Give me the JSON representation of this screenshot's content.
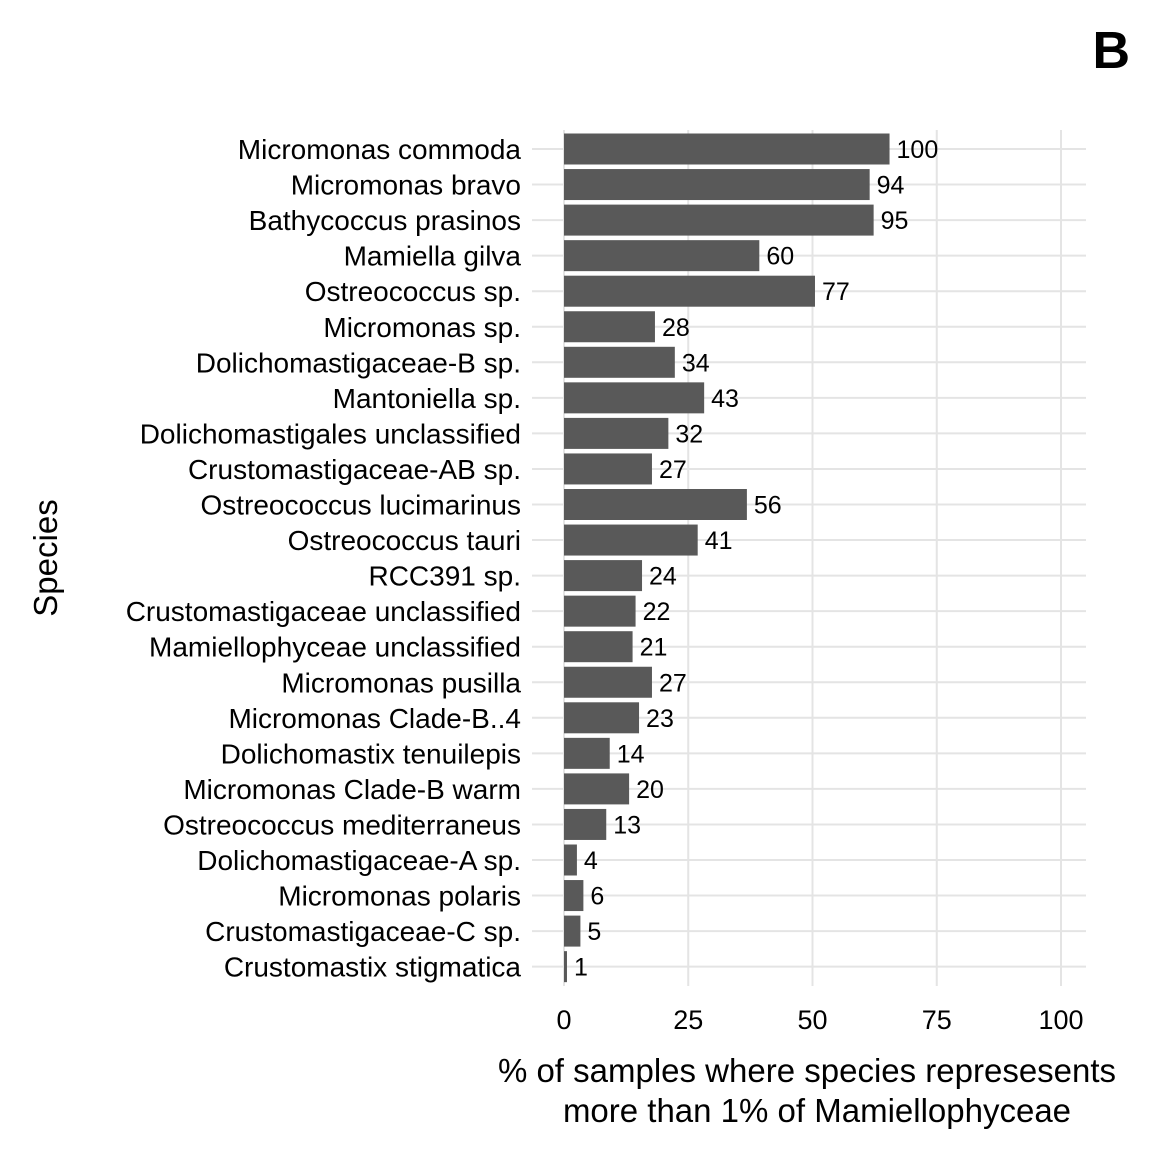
{
  "panel_tag": "B",
  "chart_data": {
    "type": "bar",
    "orientation": "horizontal",
    "title": "",
    "ylabel": "Species",
    "xlabel": [
      "% of samples where species represesents",
      "more than 1% of Mamiellophyceae"
    ],
    "xlim": [
      0,
      100
    ],
    "xticks": [
      0,
      25,
      50,
      75,
      100
    ],
    "grid": true,
    "bar_color": "#595959",
    "categories": [
      "Micromonas commoda",
      "Micromonas bravo",
      "Bathycoccus prasinos",
      "Mamiella gilva",
      "Ostreococcus sp.",
      "Micromonas sp.",
      "Dolichomastigaceae-B sp.",
      "Mantoniella sp.",
      "Dolichomastigales unclassified",
      "Crustomastigaceae-AB sp.",
      "Ostreococcus lucimarinus",
      "Ostreococcus tauri",
      "RCC391 sp.",
      "Crustomastigaceae unclassified",
      "Mamiellophyceae unclassified",
      "Micromonas pusilla",
      "Micromonas Clade-B..4",
      "Dolichomastix tenuilepis",
      "Micromonas Clade-B warm",
      "Ostreococcus mediterraneus",
      "Dolichomastigaceae-A sp.",
      "Micromonas polaris",
      "Crustomastigaceae-C sp.",
      "Crustomastix stigmatica"
    ],
    "values": [
      65.5,
      61.5,
      62.3,
      39.3,
      50.5,
      18.3,
      22.3,
      28.2,
      21.0,
      17.7,
      36.8,
      26.9,
      15.7,
      14.4,
      13.8,
      17.7,
      15.1,
      9.2,
      13.1,
      8.5,
      2.6,
      3.9,
      3.3,
      0.6
    ],
    "data_labels": [
      "100",
      "94",
      "95",
      "60",
      "77",
      "28",
      "34",
      "43",
      "32",
      "27",
      "56",
      "41",
      "24",
      "22",
      "21",
      "27",
      "23",
      "14",
      "20",
      "13",
      "4",
      "6",
      "5",
      "1"
    ]
  }
}
